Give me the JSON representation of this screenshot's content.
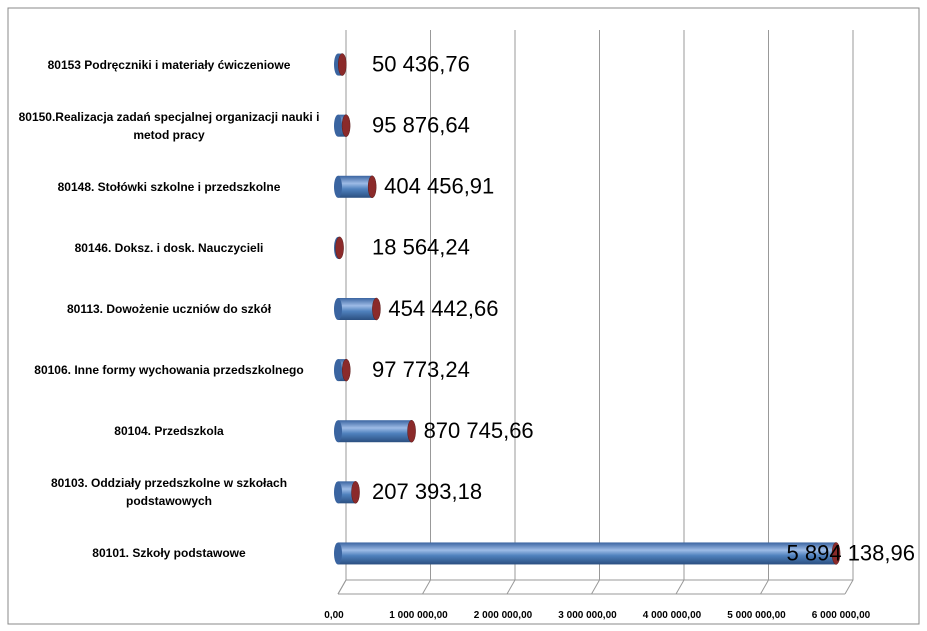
{
  "chart_data": {
    "type": "bar",
    "orientation": "horizontal",
    "categories": [
      "80153 Podręczniki i materiały ćwiczeniowe",
      "80150.Realizacja zadań specjalnej organizacji nauki i metod pracy",
      "80148. Stołówki szkolne i przedszkolne",
      "80146. Doksz. i dosk. Nauczycieli",
      "80113. Dowożenie uczniów do szkół",
      "80106. Inne formy wychowania przedszkolnego",
      "80104. Przedszkola",
      "80103. Oddziały przedszkolne w szkołach podstawowych",
      "80101. Szkoły podstawowe"
    ],
    "values": [
      50436.76,
      95876.64,
      404456.91,
      18564.24,
      454442.66,
      97773.24,
      870745.66,
      207393.18,
      5894138.96
    ],
    "value_labels": [
      "50 436,76",
      "95 876,64",
      "404 456,91",
      "18 564,24",
      "454 442,66",
      "97 773,24",
      "870 745,66",
      "207 393,18",
      "5 894 138,96"
    ],
    "color": "#4f81bd",
    "cap_color": "#8b2a2a",
    "xlim": [
      0,
      6000000
    ],
    "xticks": [
      {
        "value": 0,
        "label": "0,00"
      },
      {
        "value": 1000000,
        "label": "1 000 000,00"
      },
      {
        "value": 2000000,
        "label": "2 000 000,00"
      },
      {
        "value": 3000000,
        "label": "3 000 000,00"
      },
      {
        "value": 4000000,
        "label": "4 000 000,00"
      },
      {
        "value": 5000000,
        "label": "5 000 000,00"
      },
      {
        "value": 6000000,
        "label": "6 000 000,00"
      }
    ],
    "grid": true
  }
}
